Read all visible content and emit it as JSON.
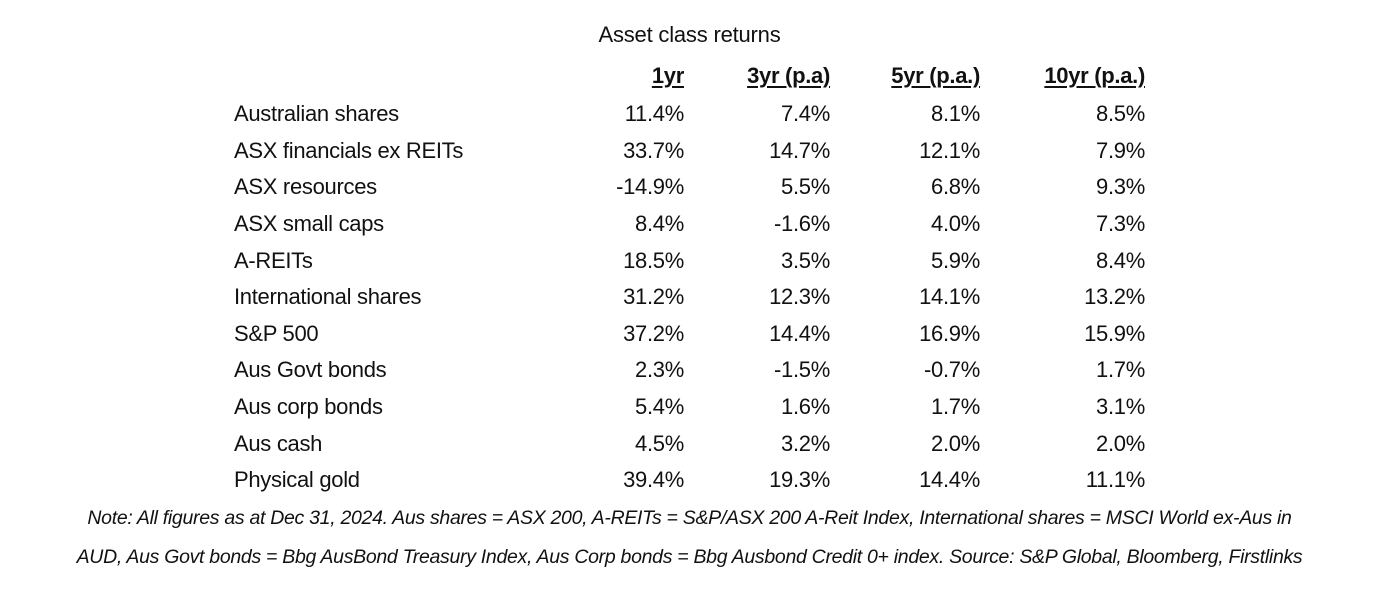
{
  "title": "Asset class returns",
  "table": {
    "headers": [
      "1yr",
      "3yr (p.a)",
      "5yr (p.a.)",
      "10yr (p.a.)"
    ],
    "rows": [
      {
        "label": "Australian shares",
        "values": [
          "11.4%",
          "7.4%",
          "8.1%",
          "8.5%"
        ]
      },
      {
        "label": "ASX financials ex REITs",
        "values": [
          "33.7%",
          "14.7%",
          "12.1%",
          "7.9%"
        ]
      },
      {
        "label": "ASX resources",
        "values": [
          "-14.9%",
          "5.5%",
          "6.8%",
          "9.3%"
        ]
      },
      {
        "label": "ASX small caps",
        "values": [
          "8.4%",
          "-1.6%",
          "4.0%",
          "7.3%"
        ]
      },
      {
        "label": "A-REITs",
        "values": [
          "18.5%",
          "3.5%",
          "5.9%",
          "8.4%"
        ]
      },
      {
        "label": "International shares",
        "values": [
          "31.2%",
          "12.3%",
          "14.1%",
          "13.2%"
        ]
      },
      {
        "label": "S&P 500",
        "values": [
          "37.2%",
          "14.4%",
          "16.9%",
          "15.9%"
        ]
      },
      {
        "label": "Aus Govt bonds",
        "values": [
          "2.3%",
          "-1.5%",
          "-0.7%",
          "1.7%"
        ]
      },
      {
        "label": "Aus corp bonds",
        "values": [
          "5.4%",
          "1.6%",
          "1.7%",
          "3.1%"
        ]
      },
      {
        "label": "Aus cash",
        "values": [
          "4.5%",
          "3.2%",
          "2.0%",
          "2.0%"
        ]
      },
      {
        "label": "Physical gold",
        "values": [
          "39.4%",
          "19.3%",
          "14.4%",
          "11.1%"
        ]
      }
    ]
  },
  "note": {
    "line1": "Note: All figures as at Dec 31, 2024. Aus shares = ASX 200, A-REITs = S&P/ASX 200 A-Reit Index, International shares = MSCI World ex-Aus in",
    "line2": "AUD, Aus Govt bonds = Bbg AusBond Treasury Index, Aus Corp bonds = Bbg Ausbond Credit 0+ index. Source: S&P Global, Bloomberg, Firstlinks"
  }
}
